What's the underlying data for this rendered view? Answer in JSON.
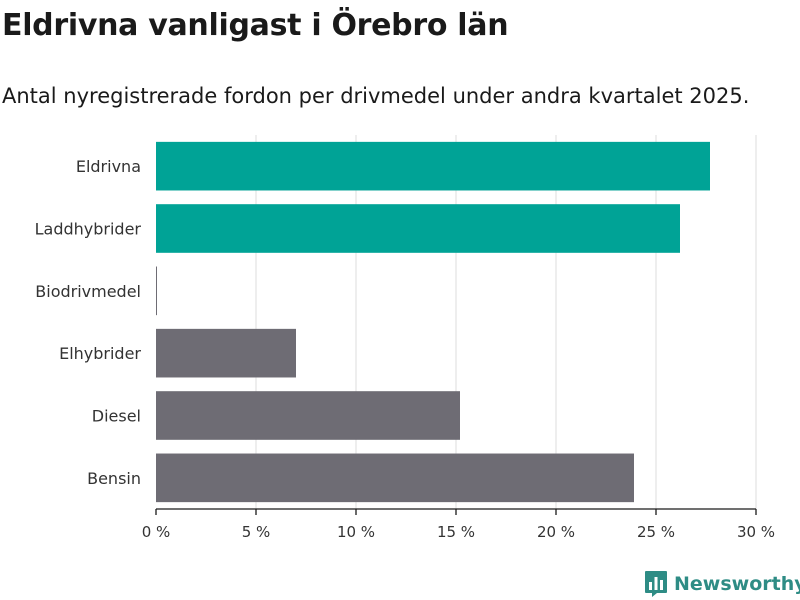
{
  "title": "Eldrivna vanligast i Örebro län",
  "subtitle": "Antal nyregistrerade fordon per drivmedel under andra kvartalet 2025.",
  "brand": {
    "name": "Newsworthy",
    "icon": "newsworthy-logo-icon",
    "color": "#2e8c85"
  },
  "chart_data": {
    "type": "bar",
    "orientation": "horizontal",
    "categories": [
      "Eldrivna",
      "Laddhybrider",
      "Biodrivmedel",
      "Elhybrider",
      "Diesel",
      "Bensin"
    ],
    "values": [
      27.7,
      26.2,
      0.05,
      7.0,
      15.2,
      23.9
    ],
    "colors": [
      "#00a396",
      "#00a396",
      "#6e6c74",
      "#6e6c74",
      "#6e6c74",
      "#6e6c74"
    ],
    "xlim": [
      0,
      30
    ],
    "xticks": [
      0,
      5,
      10,
      15,
      20,
      25,
      30
    ],
    "xtick_labels": [
      "0 %",
      "5 %",
      "10 %",
      "15 %",
      "20 %",
      "25 %",
      "30 %"
    ],
    "grid": true
  }
}
